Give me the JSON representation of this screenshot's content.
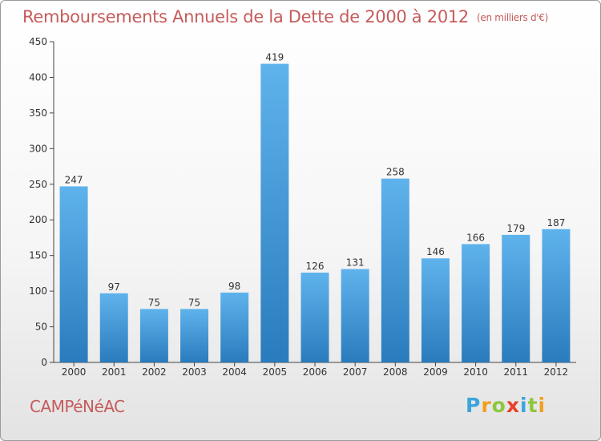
{
  "title": "Remboursements Annuels de la Dette de 2000 à 2012",
  "unit": "(en milliers d'€)",
  "commune": "CAMPéNéAC",
  "brand": {
    "letters": [
      "P",
      "r",
      "o",
      "x",
      "i",
      "t",
      "i"
    ],
    "colors": [
      "#3aa5dc",
      "#f0a020",
      "#8dc63f",
      "#e8412c",
      "#3aa5dc",
      "#8dc63f",
      "#f0a020"
    ]
  },
  "colors": {
    "bar": "#3d9ad8",
    "bar_light": "#5fb3ec",
    "bar_dark": "#2a7bbd",
    "text": "#c65b5b"
  },
  "chart_data": {
    "type": "bar",
    "categories": [
      "2000",
      "2001",
      "2002",
      "2003",
      "2004",
      "2005",
      "2006",
      "2007",
      "2008",
      "2009",
      "2010",
      "2011",
      "2012"
    ],
    "values": [
      247,
      97,
      75,
      75,
      98,
      419,
      126,
      131,
      258,
      146,
      166,
      179,
      187
    ],
    "ylim": [
      0,
      450
    ],
    "yticks": [
      0,
      50,
      100,
      150,
      200,
      250,
      300,
      350,
      400,
      450
    ],
    "grid": false,
    "legend": "none"
  }
}
